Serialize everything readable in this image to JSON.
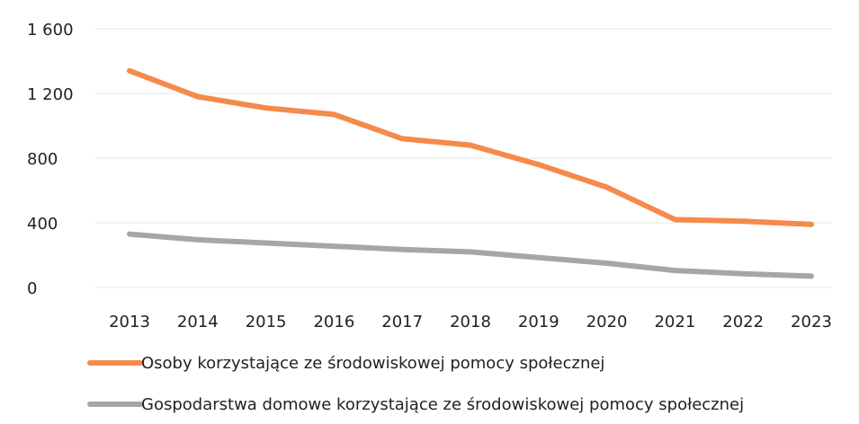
{
  "chart_data": {
    "type": "line",
    "title": "",
    "xlabel": "",
    "ylabel": "",
    "x": [
      "2013",
      "2014",
      "2015",
      "2016",
      "2017",
      "2018",
      "2019",
      "2020",
      "2021",
      "2022",
      "2023"
    ],
    "ylim": [
      0,
      1600
    ],
    "yticks": [
      0,
      400,
      800,
      1200,
      1600
    ],
    "ytick_labels": [
      "0",
      "400",
      "800",
      "1 200",
      "1 600"
    ],
    "grid": true,
    "legend_position": "bottom-left",
    "series": [
      {
        "name": "Osoby korzystające ze środowiskowej pomocy społecznej",
        "color": "#f58a4b",
        "values": [
          1340,
          1180,
          1110,
          1070,
          920,
          880,
          760,
          620,
          420,
          410,
          390
        ]
      },
      {
        "name": "Gospodarstwa domowe korzystające ze środowiskowej pomocy społecznej",
        "color": "#a6a6a6",
        "values": [
          330,
          295,
          275,
          255,
          235,
          220,
          185,
          150,
          105,
          85,
          70
        ]
      }
    ]
  }
}
